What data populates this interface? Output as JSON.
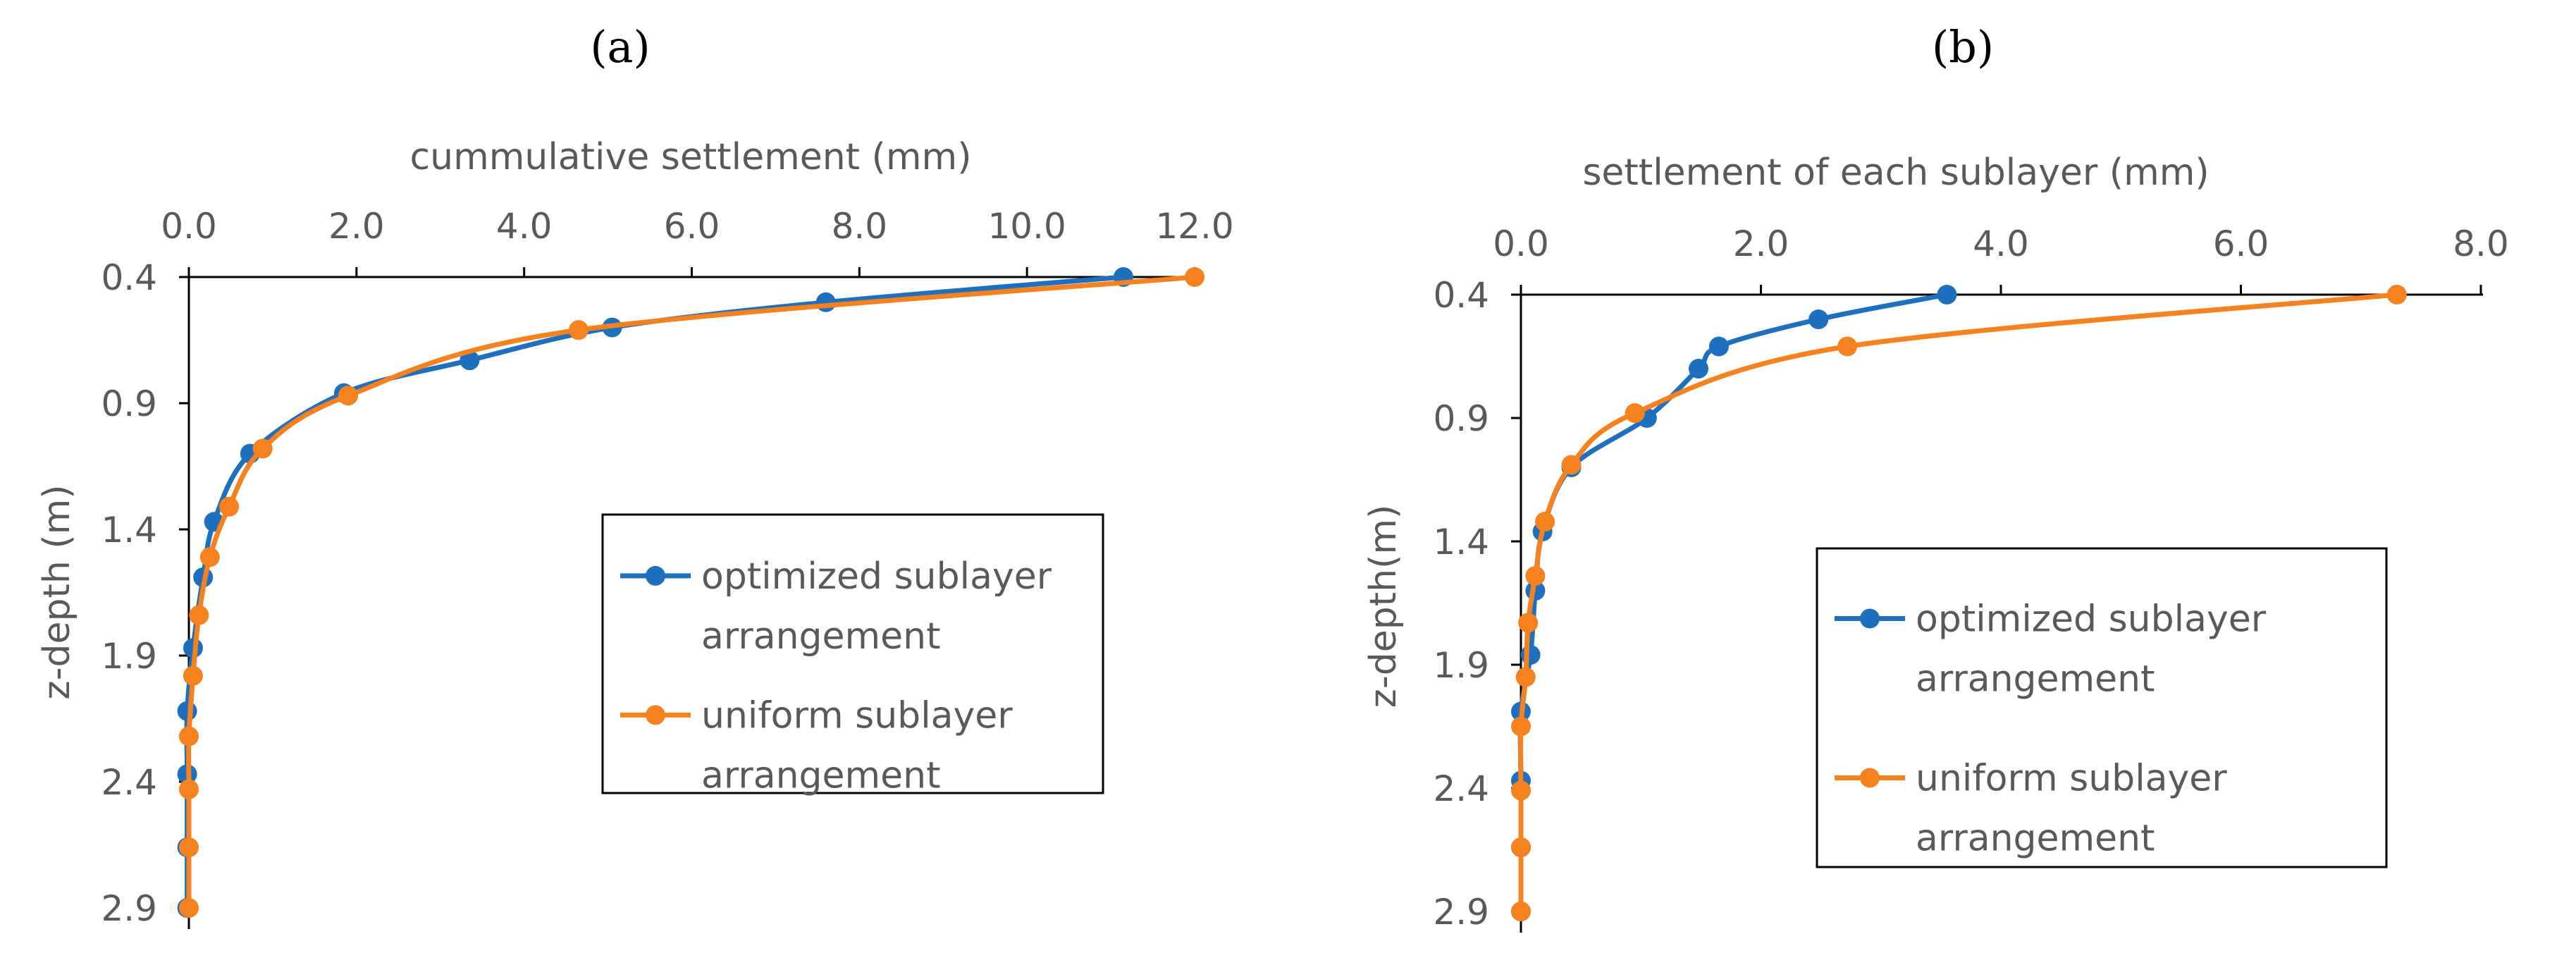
{
  "colors": {
    "series_optimized": "#1f6fbf",
    "series_uniform": "#f5821f",
    "axis": "#000000",
    "text": "#595959"
  },
  "chart_data": [
    {
      "panel": "(a)",
      "type": "line",
      "title": "",
      "xlabel": "cummulative settlement (mm)",
      "ylabel": "z-depth (m)",
      "xlim": [
        0,
        12
      ],
      "ylim": [
        0.4,
        2.9
      ],
      "x_axis_position": "top",
      "y_axis_inverted": true,
      "xticks": [
        "0.0",
        "2.0",
        "4.0",
        "6.0",
        "8.0",
        "10.0",
        "12.0"
      ],
      "yticks": [
        "0.4",
        "0.9",
        "1.4",
        "1.9",
        "2.4",
        "2.9"
      ],
      "legend": "right-center, boxed",
      "legend_lines": [
        [
          "optimized sublayer",
          "arrangement"
        ],
        [
          "uniform sublayer",
          "arrangement"
        ]
      ],
      "series": [
        {
          "name": "optimized sublayer arrangement",
          "color_key": "series_optimized",
          "points": [
            [
              11.15,
              0.4
            ],
            [
              7.6,
              0.5
            ],
            [
              5.05,
              0.6
            ],
            [
              3.35,
              0.73
            ],
            [
              1.85,
              0.86
            ],
            [
              0.73,
              1.1
            ],
            [
              0.3,
              1.37
            ],
            [
              0.17,
              1.59
            ],
            [
              0.05,
              1.87
            ],
            [
              -0.02,
              2.12
            ],
            [
              -0.02,
              2.37
            ],
            [
              -0.02,
              2.66
            ],
            [
              -0.02,
              2.9
            ]
          ]
        },
        {
          "name": "uniform sublayer arrangement",
          "color_key": "series_uniform",
          "points": [
            [
              12.0,
              0.4
            ],
            [
              4.65,
              0.61
            ],
            [
              1.9,
              0.87
            ],
            [
              0.88,
              1.08
            ],
            [
              0.48,
              1.31
            ],
            [
              0.25,
              1.51
            ],
            [
              0.12,
              1.74
            ],
            [
              0.05,
              1.98
            ],
            [
              0.0,
              2.22
            ],
            [
              0.0,
              2.43
            ],
            [
              0.0,
              2.66
            ],
            [
              0.0,
              2.9
            ]
          ]
        }
      ]
    },
    {
      "panel": "(b)",
      "type": "line",
      "title": "",
      "xlabel": "settlement of each sublayer (mm)",
      "ylabel": "z-depth(m)",
      "xlim": [
        0,
        8
      ],
      "ylim": [
        0.4,
        2.9
      ],
      "x_axis_position": "top",
      "y_axis_inverted": true,
      "xticks": [
        "0.0",
        "2.0",
        "4.0",
        "6.0",
        "8.0"
      ],
      "yticks": [
        "0.4",
        "0.9",
        "1.4",
        "1.9",
        "2.4",
        "2.9"
      ],
      "legend": "right-center, boxed",
      "legend_lines": [
        [
          "optimized sublayer",
          "arrangement"
        ],
        [
          "uniform sublayer",
          "arrangement"
        ]
      ],
      "series": [
        {
          "name": "optimized sublayer arrangement",
          "color_key": "series_optimized",
          "points": [
            [
              3.55,
              0.4
            ],
            [
              2.48,
              0.5
            ],
            [
              1.65,
              0.61
            ],
            [
              1.48,
              0.7
            ],
            [
              1.05,
              0.9
            ],
            [
              0.42,
              1.1
            ],
            [
              0.18,
              1.36
            ],
            [
              0.12,
              1.6
            ],
            [
              0.08,
              1.86
            ],
            [
              0.0,
              2.09
            ],
            [
              0.0,
              2.37
            ],
            [
              0.0,
              2.64
            ],
            [
              0.0,
              2.9
            ]
          ]
        },
        {
          "name": "uniform sublayer arrangement",
          "color_key": "series_uniform",
          "points": [
            [
              7.3,
              0.4
            ],
            [
              2.72,
              0.61
            ],
            [
              0.95,
              0.88
            ],
            [
              0.42,
              1.09
            ],
            [
              0.2,
              1.32
            ],
            [
              0.12,
              1.54
            ],
            [
              0.06,
              1.73
            ],
            [
              0.04,
              1.95
            ],
            [
              0.0,
              2.15
            ],
            [
              0.0,
              2.41
            ],
            [
              0.0,
              2.64
            ],
            [
              0.0,
              2.9
            ]
          ]
        }
      ]
    }
  ]
}
